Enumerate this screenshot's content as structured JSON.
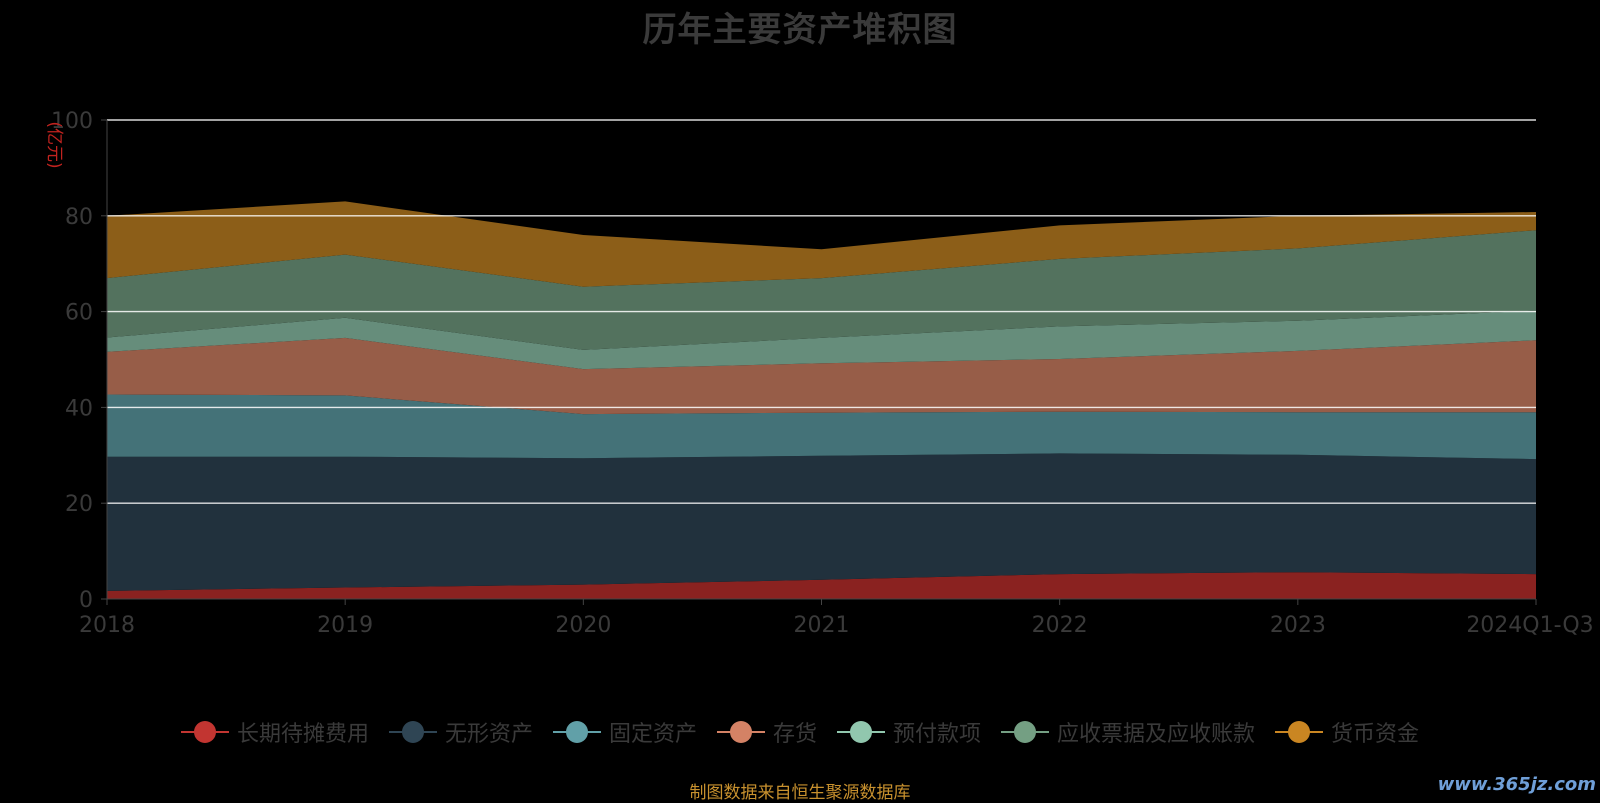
{
  "chart_data": {
    "type": "area",
    "stacked": true,
    "title": "历年主要资产堆积图",
    "ylabel": "(亿元)",
    "ylim": [
      0,
      100
    ],
    "yticks": [
      0,
      20,
      40,
      60,
      80,
      100
    ],
    "categories": [
      "2018",
      "2019",
      "2020",
      "2021",
      "2022",
      "2023",
      "2024Q1-Q3"
    ],
    "grid": true,
    "legend_position": "bottom",
    "series": [
      {
        "name": "长期待摊费用",
        "values": [
          1.7,
          2.4,
          3.0,
          4.0,
          5.2,
          5.6,
          5.2
        ],
        "color": "#c23531",
        "fill": "#8a2220"
      },
      {
        "name": "无形资产",
        "values": [
          28.0,
          27.3,
          26.4,
          25.9,
          25.2,
          24.5,
          24.0
        ],
        "color": "#2f4554",
        "fill": "#21313d"
      },
      {
        "name": "固定资产",
        "values": [
          13.0,
          12.8,
          9.2,
          9.0,
          8.7,
          8.9,
          9.8
        ],
        "color": "#61a0a8",
        "fill": "#447278"
      },
      {
        "name": "存货",
        "values": [
          8.9,
          12.0,
          9.4,
          10.3,
          11.0,
          12.8,
          15.0
        ],
        "color": "#d48265",
        "fill": "#975d48"
      },
      {
        "name": "预付款项",
        "values": [
          3.0,
          4.2,
          4.0,
          5.3,
          6.8,
          6.3,
          6.2
        ],
        "color": "#91c7ae",
        "fill": "#668d7b"
      },
      {
        "name": "应收票据及应收账款",
        "values": [
          12.4,
          13.2,
          13.2,
          12.5,
          14.1,
          15.1,
          16.8
        ],
        "color": "#749f83",
        "fill": "#53725e"
      },
      {
        "name": "货币资金",
        "values": [
          13.0,
          11.1,
          10.8,
          6.0,
          7.0,
          6.8,
          3.8
        ],
        "color": "#ca8622",
        "fill": "#8c5e18"
      }
    ]
  },
  "source_note": "制图数据来自恒生聚源数据库",
  "watermark": "www.365jz.com"
}
